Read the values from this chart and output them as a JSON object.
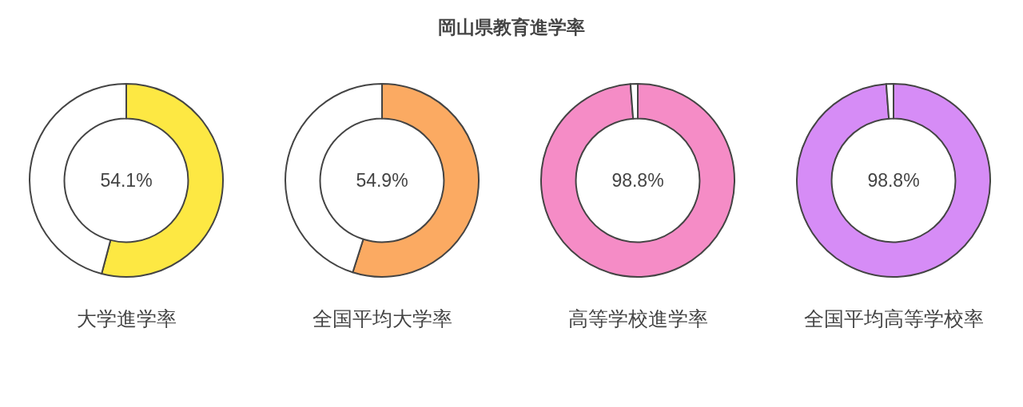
{
  "chart_data": [
    {
      "type": "other",
      "title": "岡山県教育進学率"
    },
    {
      "type": "donut",
      "categories": [
        null,
        null
      ],
      "values": [
        54.1,
        45.9
      ],
      "colors": [
        "#fde843",
        "#ffffff"
      ],
      "annotations": [
        "54.1%"
      ],
      "xlabel": "大学進学率"
    },
    {
      "type": "donut",
      "categories": [
        null,
        null
      ],
      "values": [
        54.9,
        45.1
      ],
      "colors": [
        "#fbaa62",
        "#ffffff"
      ],
      "annotations": [
        "54.9%"
      ],
      "xlabel": "全国平均大学率"
    },
    {
      "type": "donut",
      "categories": [
        null,
        null
      ],
      "values": [
        98.8,
        1.2
      ],
      "colors": [
        "#f58cc6",
        "#ffffff"
      ],
      "annotations": [
        "98.8%"
      ],
      "xlabel": "高等学校進学率"
    },
    {
      "type": "donut",
      "categories": [
        null,
        null
      ],
      "values": [
        98.8,
        1.2
      ],
      "colors": [
        "#d68cf6",
        "#ffffff"
      ],
      "annotations": [
        "98.8%"
      ],
      "xlabel": "全国平均高等学校率"
    }
  ]
}
